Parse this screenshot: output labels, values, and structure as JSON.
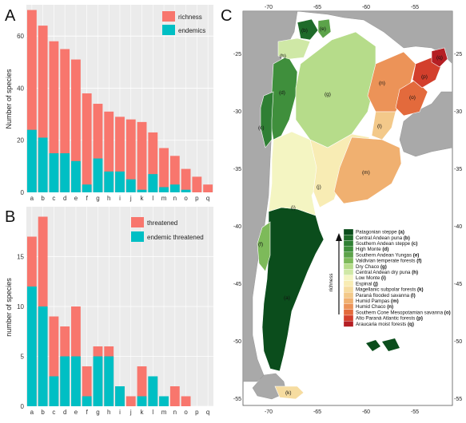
{
  "panels": {
    "a": "A",
    "b": "B",
    "c": "C"
  },
  "colors": {
    "red": "#f8766d",
    "teal": "#00bfc4",
    "panel_bg": "#ebebeb",
    "grid": "#ffffff",
    "land_gray": "#a9a9a9",
    "sea": "#ffffff"
  },
  "chart_data": [
    {
      "id": "A",
      "type": "bar",
      "categories": [
        "a",
        "b",
        "c",
        "d",
        "e",
        "f",
        "g",
        "h",
        "i",
        "j",
        "k",
        "l",
        "m",
        "n",
        "o",
        "p",
        "q"
      ],
      "series": [
        {
          "name": "richness",
          "color": "#f8766d",
          "values": [
            70,
            64,
            58,
            55,
            51,
            38,
            34,
            31,
            29,
            28,
            27,
            23,
            17,
            14,
            9,
            6,
            3
          ]
        },
        {
          "name": "endemics",
          "color": "#00bfc4",
          "values": [
            24,
            21,
            15,
            15,
            12,
            3,
            13,
            8,
            8,
            5,
            1,
            7,
            2,
            3,
            1,
            0,
            0
          ]
        }
      ],
      "xlabel": "",
      "ylabel": "Number of species",
      "ylim": [
        0,
        72
      ],
      "yticks": [
        0,
        20,
        40,
        60
      ],
      "grid": true,
      "legend": "top-right",
      "overlay": true
    },
    {
      "id": "B",
      "type": "bar",
      "categories": [
        "a",
        "b",
        "c",
        "d",
        "e",
        "f",
        "g",
        "h",
        "i",
        "j",
        "k",
        "l",
        "m",
        "n",
        "o",
        "p",
        "q"
      ],
      "series": [
        {
          "name": "threatened",
          "color": "#f8766d",
          "values": [
            17,
            19,
            9,
            8,
            10,
            4,
            6,
            6,
            2,
            1,
            4,
            3,
            1,
            2,
            1,
            0,
            0
          ]
        },
        {
          "name": "endemic threatened",
          "color": "#00bfc4",
          "values": [
            12,
            10,
            3,
            5,
            5,
            1,
            5,
            5,
            2,
            0,
            1,
            3,
            1,
            0,
            0,
            0,
            0
          ]
        }
      ],
      "xlabel": "",
      "ylabel": "number of species",
      "ylim": [
        0,
        20
      ],
      "yticks": [
        0,
        5,
        10,
        15
      ],
      "grid": true,
      "legend": "top-right",
      "overlay": true
    }
  ],
  "map": {
    "lon_ticks_top": [
      "-70",
      "-65",
      "-60",
      "-55"
    ],
    "lon_ticks_bottom": [
      "-70",
      "-65",
      "-60",
      "-55"
    ],
    "lat_ticks_left": [
      "-25",
      "-30",
      "-35",
      "-40",
      "-45",
      "-50",
      "-55"
    ],
    "lat_ticks_right": [
      "-25",
      "-30",
      "-35",
      "-40",
      "-45",
      "-50",
      "-55"
    ],
    "richness_label": "richness",
    "legend": [
      {
        "label": "Patagonian steppe",
        "code": "(a)",
        "color": "#0b4d1c"
      },
      {
        "label": "Central Andean puna",
        "code": "(b)",
        "color": "#1f6b2a"
      },
      {
        "label": "Southern Andean steppe",
        "code": "(c)",
        "color": "#2f7f34"
      },
      {
        "label": "High Monte",
        "code": "(d)",
        "color": "#3f8f3c"
      },
      {
        "label": "Southern Andean Yungas",
        "code": "(e)",
        "color": "#5ca34a"
      },
      {
        "label": "Valdivian temperate forests",
        "code": "(f)",
        "color": "#7dba5a"
      },
      {
        "label": "Dry Chaco",
        "code": "(g)",
        "color": "#b6dc8a"
      },
      {
        "label": "Central Andean dry puna",
        "code": "(h)",
        "color": "#cfe8a6"
      },
      {
        "label": "Low Monte",
        "code": "(i)",
        "color": "#f4f5c2"
      },
      {
        "label": "Espinal",
        "code": "(j)",
        "color": "#f8ecb4"
      },
      {
        "label": "Magellanic subpolar forests",
        "code": "(k)",
        "color": "#f6dca0"
      },
      {
        "label": "Paraná flooded savanna",
        "code": "(l)",
        "color": "#f3c98a"
      },
      {
        "label": "Humid Pampas",
        "code": "(m)",
        "color": "#f0b070"
      },
      {
        "label": "Humid Chaco",
        "code": "(n)",
        "color": "#ec9358"
      },
      {
        "label": "Southern Cone Mesopotamian savanna",
        "code": "(o)",
        "color": "#e36a3c"
      },
      {
        "label": "Alto Paraná Atlantic forests",
        "code": "(p)",
        "color": "#d33f2c"
      },
      {
        "label": "Araucaria moist forests",
        "code": "(q)",
        "color": "#b51f24"
      }
    ],
    "region_labels": [
      "(a)",
      "(b)",
      "(c)",
      "(d)",
      "(e)",
      "(f)",
      "(g)",
      "(h)",
      "(i)",
      "(j)",
      "(k)",
      "(l)",
      "(m)",
      "(n)",
      "(o)",
      "(p)",
      "(q)"
    ]
  }
}
